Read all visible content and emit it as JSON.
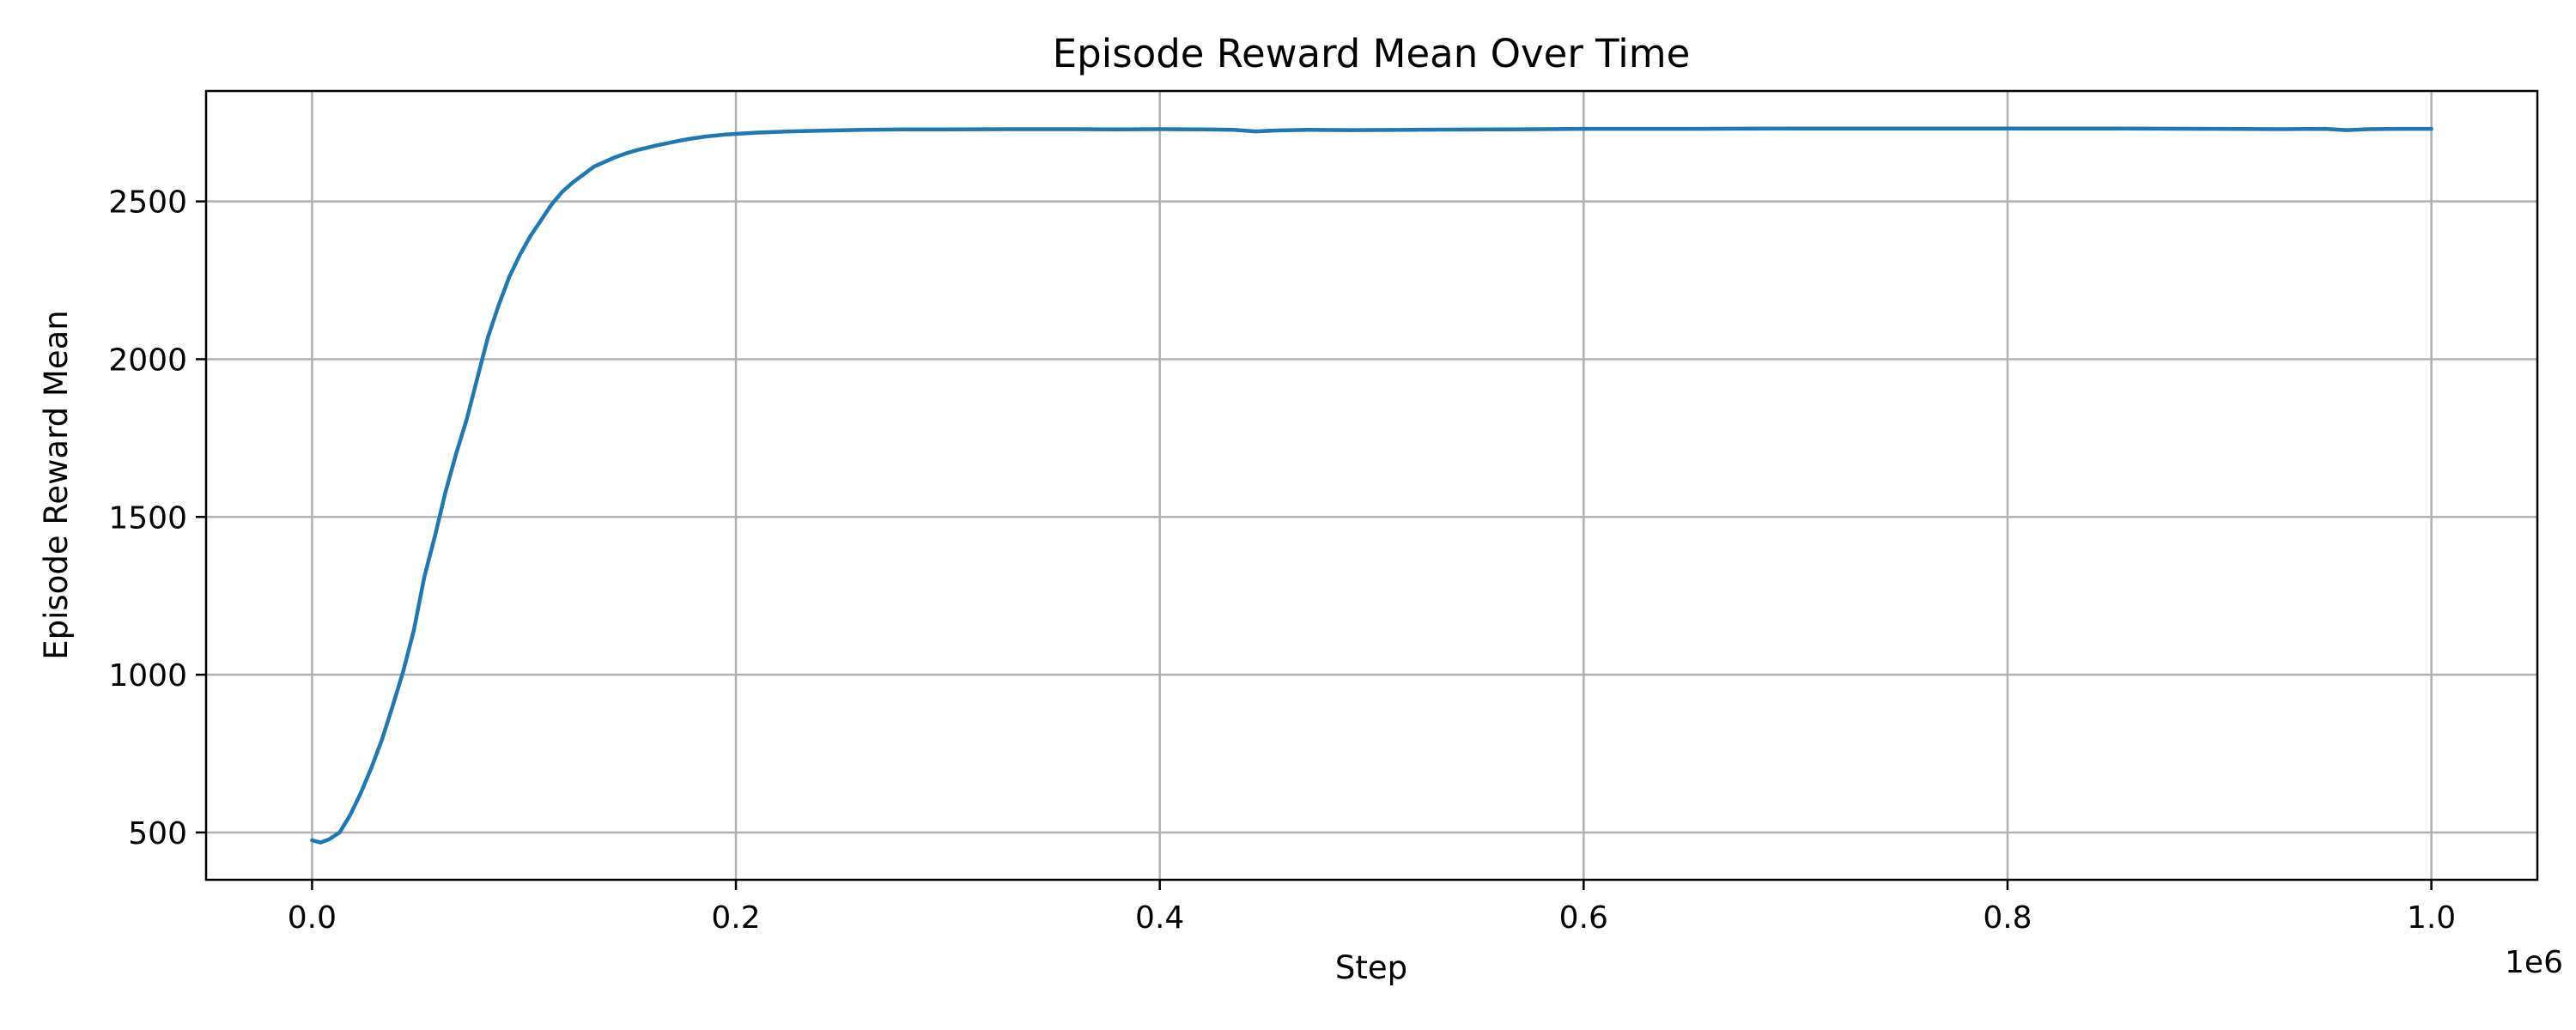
{
  "chart_data": {
    "type": "line",
    "title": "Episode Reward Mean Over Time",
    "xlabel": "Step",
    "ylabel": "Episode Reward Mean",
    "x_offset_label": "1e6",
    "xlim": [
      -50000,
      1050000
    ],
    "ylim": [
      350,
      2850
    ],
    "x_ticks": [
      0,
      200000,
      400000,
      600000,
      800000,
      1000000
    ],
    "x_tick_labels": [
      "0.0",
      "0.2",
      "0.4",
      "0.6",
      "0.8",
      "1.0"
    ],
    "y_ticks": [
      500,
      1000,
      1500,
      2000,
      2500
    ],
    "y_tick_labels": [
      "500",
      "1000",
      "1500",
      "2000",
      "2500"
    ],
    "grid": true,
    "line_color": "#1f77b4",
    "series": [
      {
        "x": [
          0,
          4000,
          8000,
          13000,
          18000,
          23000,
          28000,
          33000,
          38000,
          43000,
          48000,
          53000,
          58000,
          63000,
          68000,
          73000,
          78000,
          83000,
          88000,
          93000,
          98000,
          103000,
          108000,
          113000,
          118000,
          123000,
          128000,
          133000,
          138000,
          143000,
          148000,
          153000,
          158000,
          163000,
          168000,
          173000,
          178000,
          185000,
          195000,
          210000,
          225000,
          240000,
          260000,
          280000,
          300000,
          330000,
          360000,
          380000,
          400000,
          420000,
          435000,
          445000,
          455000,
          470000,
          490000,
          520000,
          560000,
          600000,
          650000,
          700000,
          750000,
          800000,
          850000,
          900000,
          930000,
          950000,
          960000,
          970000,
          985000,
          1000000
        ],
        "y": [
          475,
          468,
          478,
          500,
          555,
          625,
          705,
          795,
          900,
          1010,
          1140,
          1310,
          1440,
          1580,
          1700,
          1810,
          1940,
          2070,
          2170,
          2260,
          2330,
          2390,
          2440,
          2490,
          2530,
          2560,
          2585,
          2610,
          2625,
          2640,
          2652,
          2662,
          2670,
          2678,
          2685,
          2692,
          2698,
          2705,
          2712,
          2718,
          2722,
          2724,
          2727,
          2728,
          2728,
          2729,
          2729,
          2728,
          2729,
          2728,
          2727,
          2722,
          2725,
          2727,
          2726,
          2727,
          2728,
          2730,
          2730,
          2731,
          2731,
          2731,
          2731,
          2730,
          2729,
          2730,
          2726,
          2729,
          2730,
          2730
        ]
      }
    ]
  }
}
